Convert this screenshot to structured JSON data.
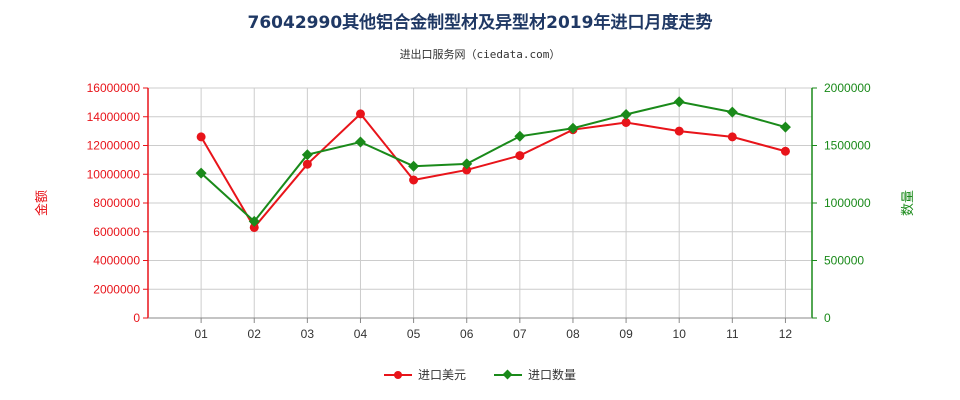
{
  "title": "76042990其他铝合金制型材及异型材2019年进口月度走势",
  "subtitle": "进出口服务网（ciedata.com）",
  "colors": {
    "amount": "#e8141a",
    "quantity": "#1a8a1a",
    "grid": "#cccccc",
    "axis": "#888888"
  },
  "chart_data": {
    "type": "line",
    "categories": [
      "01",
      "02",
      "03",
      "04",
      "05",
      "06",
      "07",
      "08",
      "09",
      "10",
      "11",
      "12"
    ],
    "y_left": {
      "label": "金额",
      "min": 0,
      "max": 16000000,
      "ticks": [
        "0",
        "2000000",
        "4000000",
        "6000000",
        "8000000",
        "10000000",
        "12000000",
        "14000000",
        "16000000"
      ]
    },
    "y_right": {
      "label": "数量",
      "min": 0,
      "max": 2000000,
      "ticks": [
        "0",
        "500000",
        "1000000",
        "1500000",
        "2000000"
      ]
    },
    "series": [
      {
        "name": "进口美元",
        "axis": "left",
        "marker": "circle",
        "values": [
          12600000,
          6300000,
          10700000,
          14200000,
          9600000,
          10300000,
          11300000,
          13100000,
          13600000,
          13000000,
          12600000,
          11600000
        ]
      },
      {
        "name": "进口数量",
        "axis": "right",
        "marker": "diamond",
        "values": [
          1260000,
          840000,
          1420000,
          1530000,
          1320000,
          1340000,
          1580000,
          1650000,
          1770000,
          1880000,
          1790000,
          1660000
        ]
      }
    ],
    "grid": true,
    "legend": "bottom-center"
  }
}
